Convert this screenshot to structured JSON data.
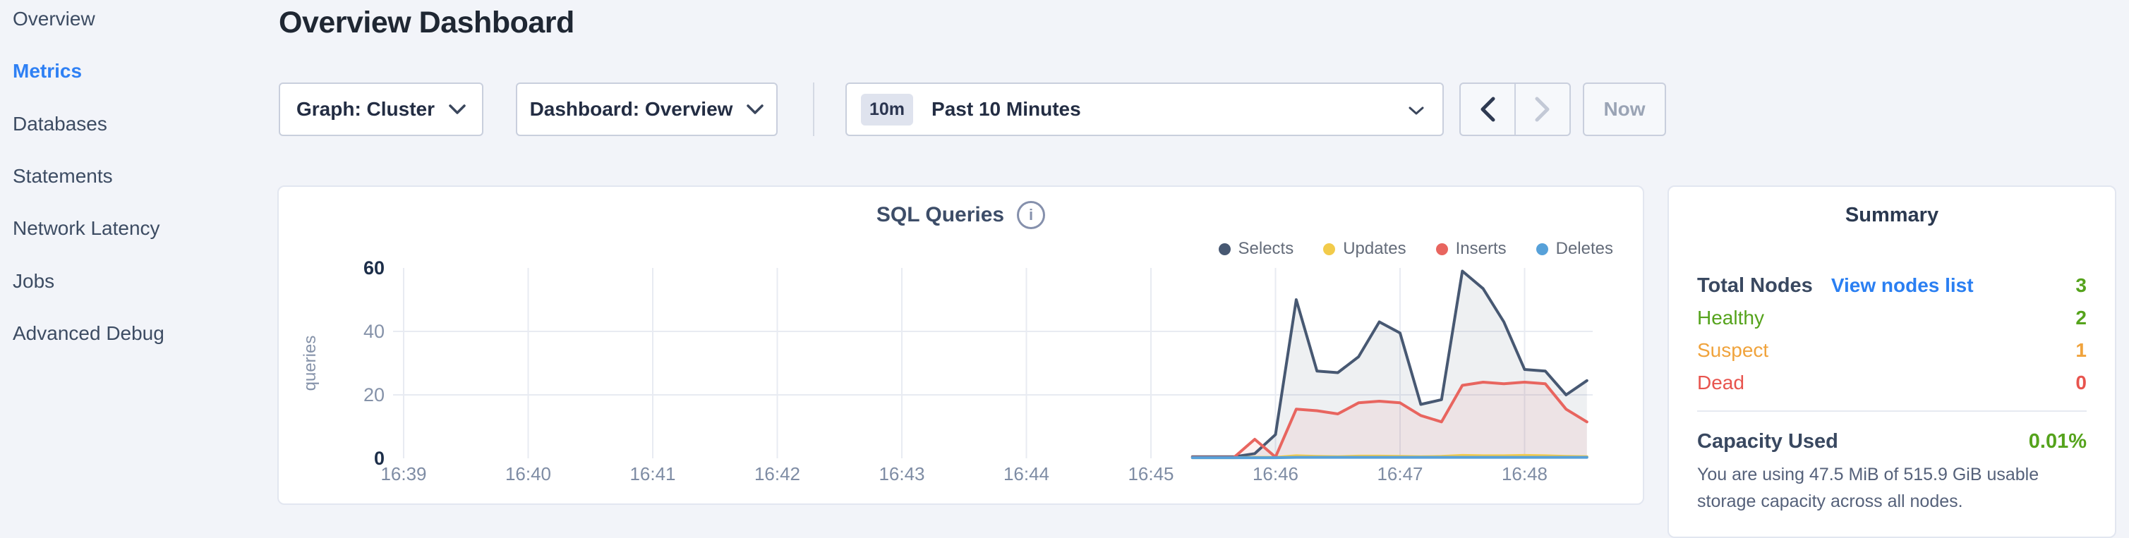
{
  "sidebar": {
    "items": [
      {
        "label": "Overview",
        "active": false
      },
      {
        "label": "Metrics",
        "active": true
      },
      {
        "label": "Databases",
        "active": false
      },
      {
        "label": "Statements",
        "active": false
      },
      {
        "label": "Network Latency",
        "active": false
      },
      {
        "label": "Jobs",
        "active": false
      },
      {
        "label": "Advanced Debug",
        "active": false
      }
    ]
  },
  "page": {
    "title": "Overview Dashboard"
  },
  "toolbar": {
    "graph_dropdown": "Graph: Cluster",
    "dashboard_dropdown": "Dashboard: Overview",
    "time_badge": "10m",
    "time_label": "Past 10 Minutes",
    "now_button": "Now"
  },
  "chart_data": {
    "type": "area",
    "title": "SQL Queries",
    "ylabel": "queries",
    "xlabel": "",
    "grid": true,
    "legend_position": "top-right",
    "x_ticks": [
      "16:39",
      "16:40",
      "16:41",
      "16:42",
      "16:43",
      "16:44",
      "16:45",
      "16:46",
      "16:47",
      "16:48"
    ],
    "y_ticks": [
      0,
      20,
      40,
      60
    ],
    "y_gridlines": [
      20,
      40
    ],
    "ylim": [
      0,
      60
    ],
    "x_start_time": "16:45:20",
    "x_step_seconds": 10,
    "series": [
      {
        "name": "Selects",
        "color": "#475872",
        "values": [
          0.5,
          0.5,
          0.5,
          1.5,
          7.5,
          50,
          27.5,
          27,
          32,
          43,
          39.5,
          17,
          18.5,
          59,
          53.5,
          43,
          28,
          27.5,
          20,
          24.5
        ]
      },
      {
        "name": "Updates",
        "color": "#f2cb4a",
        "values": [
          0.2,
          0.2,
          0.2,
          0.3,
          0.3,
          0.8,
          0.6,
          0.5,
          0.7,
          0.7,
          0.6,
          0.5,
          0.6,
          0.9,
          0.8,
          0.8,
          0.9,
          0.8,
          0.6,
          0.5
        ]
      },
      {
        "name": "Inserts",
        "color": "#e8655f",
        "values": [
          0.3,
          0.3,
          0.3,
          6,
          0.4,
          15.5,
          15,
          14,
          17.5,
          18,
          17.5,
          13.5,
          11.5,
          23,
          24,
          23.5,
          24,
          23.5,
          15.5,
          11.5
        ]
      },
      {
        "name": "Deletes",
        "color": "#57a1d9",
        "values": [
          0.2,
          0.2,
          0.2,
          0.2,
          0.2,
          0.3,
          0.3,
          0.3,
          0.3,
          0.3,
          0.3,
          0.3,
          0.3,
          0.3,
          0.3,
          0.3,
          0.3,
          0.3,
          0.3,
          0.3
        ]
      }
    ]
  },
  "summary": {
    "title": "Summary",
    "total_nodes_label": "Total Nodes",
    "view_nodes_link": "View nodes list",
    "total_nodes_value": "3",
    "total_value_color": "#55a31c",
    "status_rows": [
      {
        "label": "Healthy",
        "value": "2",
        "color": "#55a31c"
      },
      {
        "label": "Suspect",
        "value": "1",
        "color": "#f0a33c"
      },
      {
        "label": "Dead",
        "value": "0",
        "color": "#e8544e"
      }
    ],
    "capacity_label": "Capacity Used",
    "capacity_value": "0.01%",
    "capacity_value_color": "#55a31c",
    "capacity_description": "You are using 47.5 MiB of 515.9 GiB usable storage capacity across all nodes."
  }
}
